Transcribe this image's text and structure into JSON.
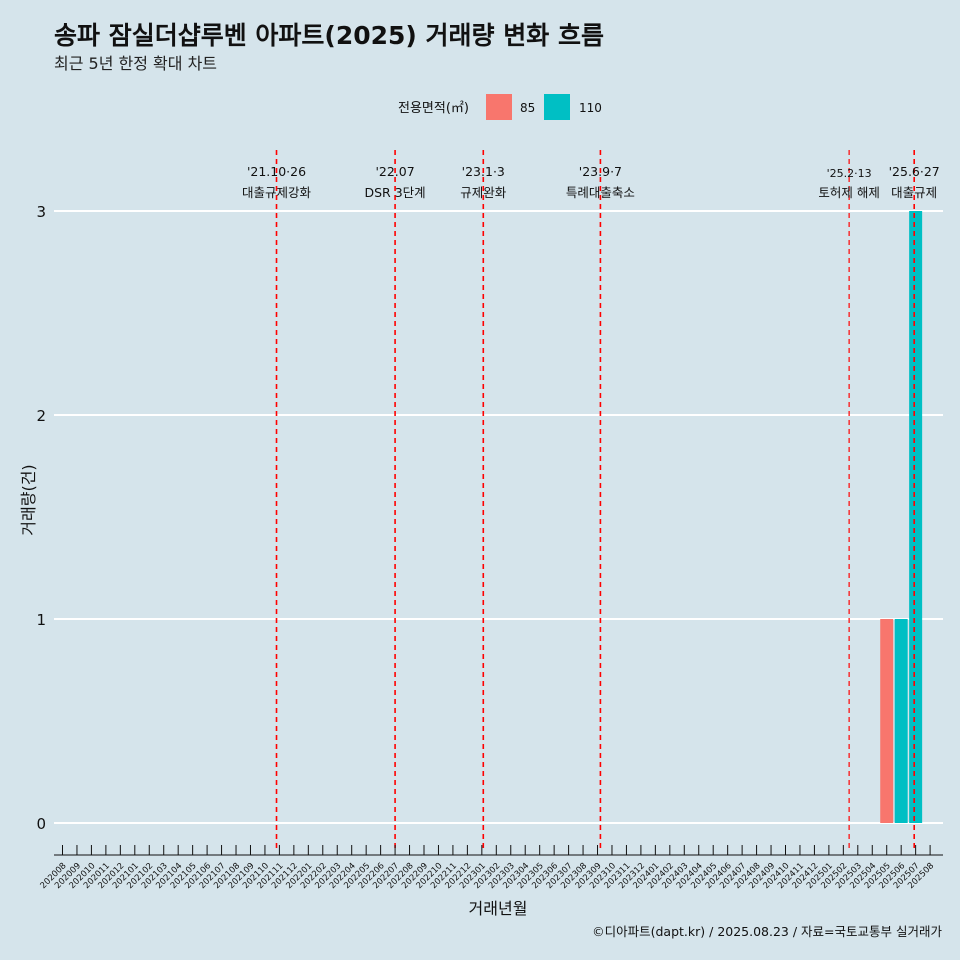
{
  "title": "송파 잠실더샵루벤 아파트(2025) 거래량 변화 흐름",
  "subtitle": "최근 5년 한정 확대 차트",
  "caption": "©디아파트(dapt.kr) / 2025.08.23 / 자료=국토교통부 실거래가",
  "colors": {
    "background": "#d5e4eb",
    "series_85": "#f8766d",
    "series_110": "#00bfc4",
    "event_line": "#ff0000",
    "grid": "#ffffff"
  },
  "chart_data": {
    "type": "bar",
    "xlabel": "거래년월",
    "ylabel": "거래량(건)",
    "ylim": [
      0,
      3
    ],
    "yticks": [
      0,
      1,
      2,
      3
    ],
    "grid": true,
    "legend": {
      "title": "전용면적(㎡)",
      "position": "top"
    },
    "categories": [
      "202008",
      "202009",
      "202010",
      "202011",
      "202012",
      "202101",
      "202102",
      "202103",
      "202104",
      "202105",
      "202106",
      "202107",
      "202108",
      "202109",
      "202110",
      "202111",
      "202112",
      "202201",
      "202202",
      "202203",
      "202204",
      "202205",
      "202206",
      "202207",
      "202208",
      "202209",
      "202210",
      "202211",
      "202212",
      "202301",
      "202302",
      "202303",
      "202304",
      "202305",
      "202306",
      "202307",
      "202308",
      "202309",
      "202310",
      "202311",
      "202312",
      "202401",
      "202402",
      "202403",
      "202404",
      "202405",
      "202406",
      "202407",
      "202408",
      "202409",
      "202410",
      "202411",
      "202412",
      "202501",
      "202502",
      "202503",
      "202504",
      "202505",
      "202506",
      "202507",
      "202508"
    ],
    "series": [
      {
        "name": "85",
        "color": "#f8766d",
        "points": [
          {
            "x": "202505",
            "y": 1
          }
        ]
      },
      {
        "name": "110",
        "color": "#00bfc4",
        "points": [
          {
            "x": "202506",
            "y": 1
          },
          {
            "x": "202507",
            "y": 3
          }
        ]
      }
    ],
    "annotations": [
      {
        "date": "'21.10·26",
        "label": "대출규제강화",
        "x": "202110",
        "offset": 0.8
      },
      {
        "date": "'22.07",
        "label": "DSR 3단계",
        "x": "202207",
        "offset": 0.0
      },
      {
        "date": "'23.1·3",
        "label": "규제완화",
        "x": "202301",
        "offset": 0.1
      },
      {
        "date": "'23.9·7",
        "label": "특례대출축소",
        "x": "202309",
        "offset": 0.2
      },
      {
        "date": "'25.2·13",
        "label": "토허제 해제",
        "x": "202502",
        "offset": 0.4,
        "small": true
      },
      {
        "date": "'25.6·27",
        "label": "대출규제",
        "x": "202506",
        "offset": 0.9
      }
    ]
  }
}
